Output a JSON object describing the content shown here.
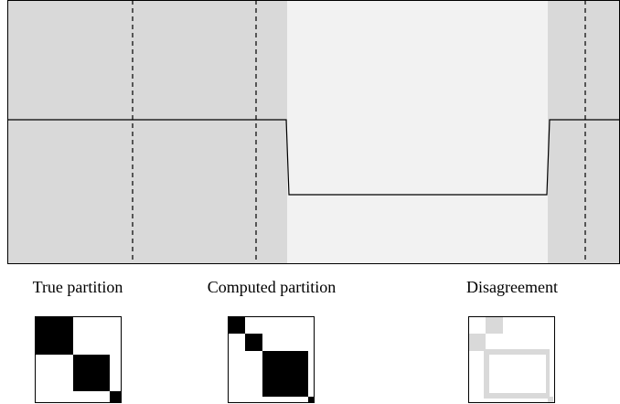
{
  "labels": [
    "True partition",
    "Computed partition",
    "Disagreement"
  ]
}
